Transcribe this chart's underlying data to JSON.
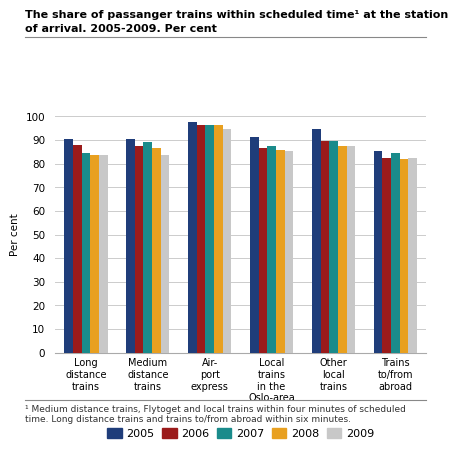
{
  "title_line1": "The share of passanger trains within scheduled time¹ at the station",
  "title_line2": "of arrival. 2005-2009. Per cent",
  "ylabel": "Per cent",
  "footnote": "¹ Medium distance trains, Flytoget and local trains within four minutes of scheduled\ntime. Long distance trains and trains to/from abroad within six minutes.",
  "categories": [
    "Long\ndistance\ntrains",
    "Medium\ndistance\ntrains",
    "Air-\nport\nexpress",
    "Local\ntrains\nin the\nOslo-area",
    "Other\nlocal\ntrains",
    "Trains\nto/from\nabroad"
  ],
  "years": [
    "2005",
    "2006",
    "2007",
    "2008",
    "2009"
  ],
  "colors": [
    "#1F3D7A",
    "#9B1B1B",
    "#1A8B8B",
    "#E8A020",
    "#C8C8C8"
  ],
  "data": [
    [
      90.5,
      88.0,
      84.5,
      83.5,
      83.5
    ],
    [
      90.5,
      87.5,
      89.0,
      86.5,
      83.5
    ],
    [
      97.5,
      96.5,
      96.5,
      96.5,
      94.5
    ],
    [
      91.5,
      86.5,
      87.5,
      86.0,
      85.5
    ],
    [
      94.5,
      89.5,
      89.5,
      87.5,
      87.5
    ],
    [
      85.5,
      82.5,
      84.5,
      82.0,
      82.5
    ]
  ],
  "ylim": [
    0,
    100
  ],
  "yticks": [
    0,
    10,
    20,
    30,
    40,
    50,
    60,
    70,
    80,
    90,
    100
  ],
  "background_color": "#FFFFFF",
  "grid_color": "#CCCCCC"
}
